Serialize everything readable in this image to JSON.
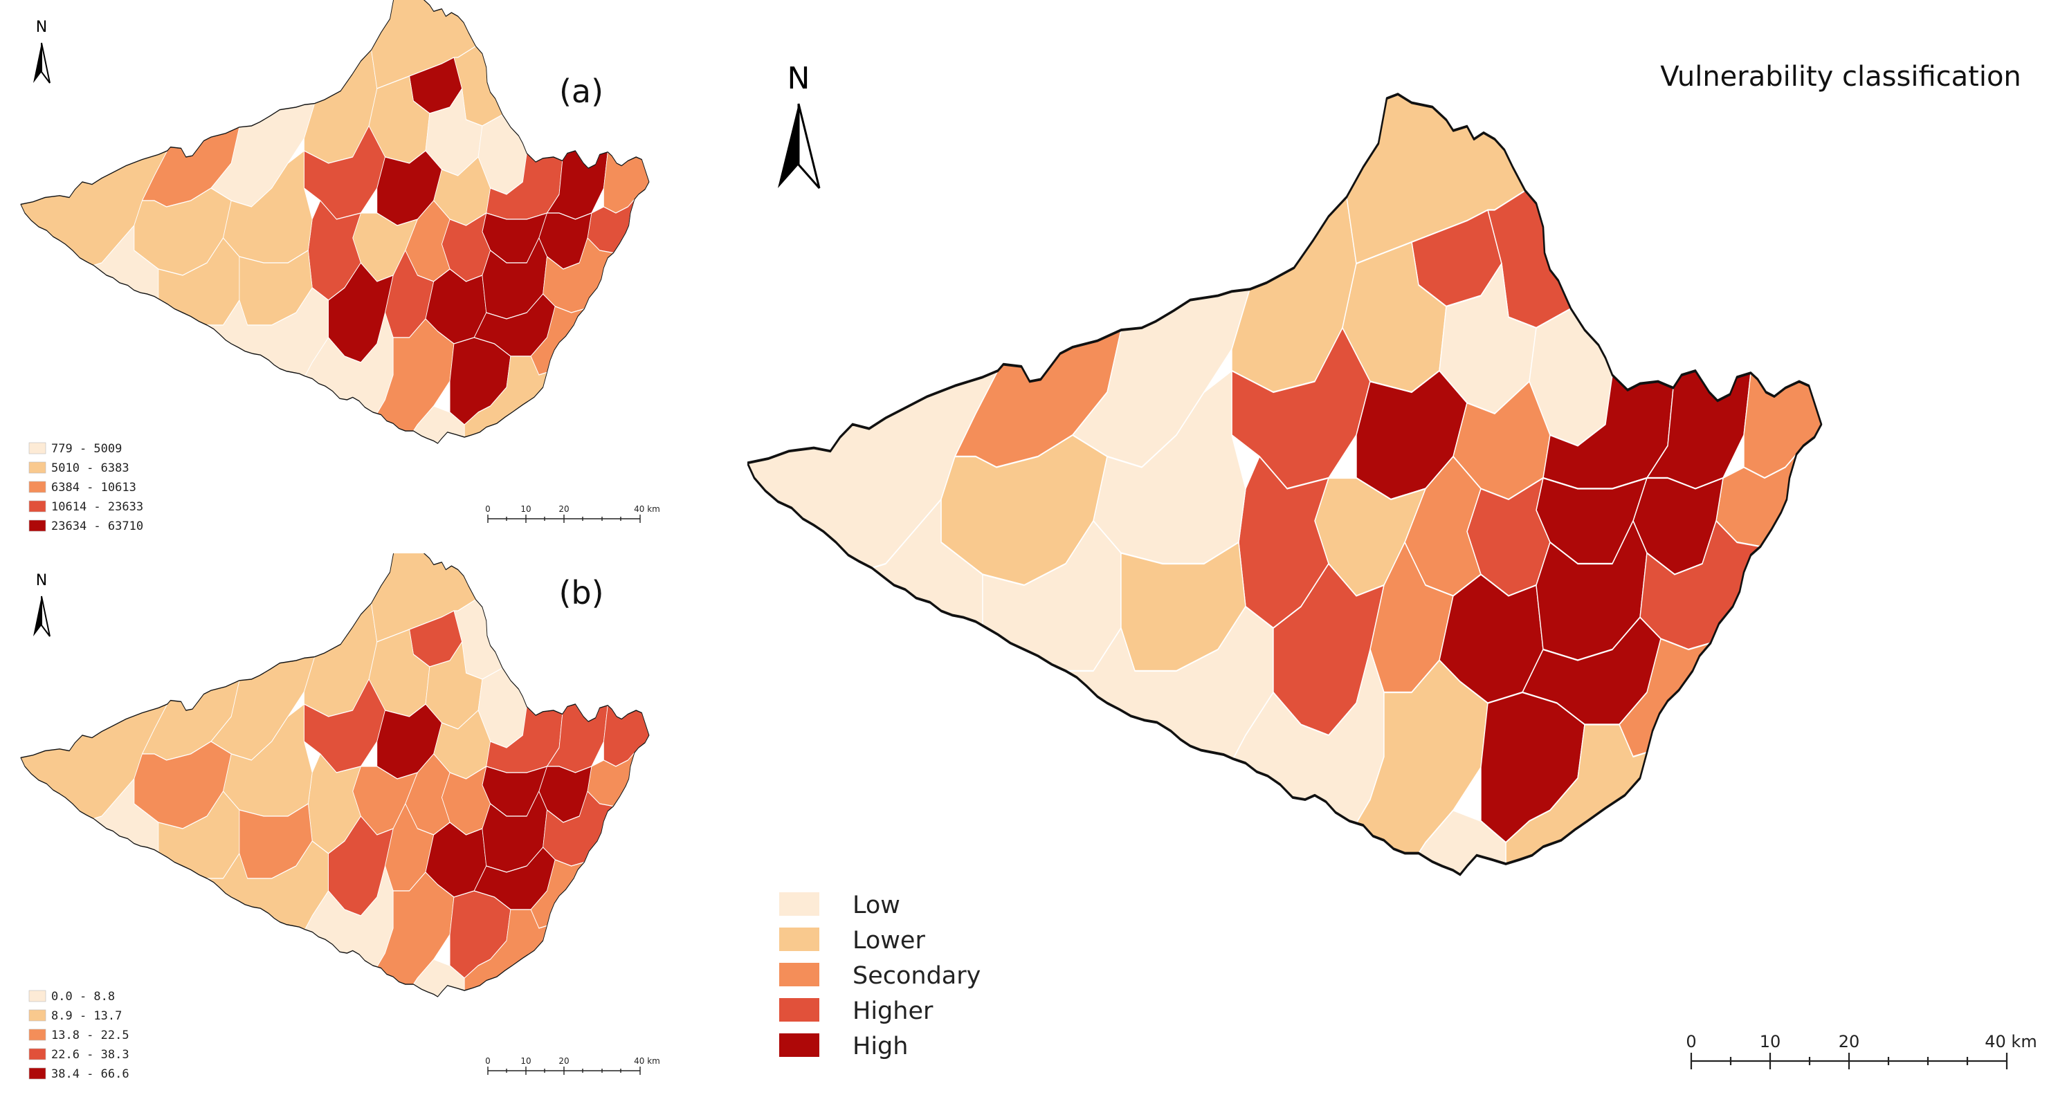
{
  "colors": {
    "c1": "#FDEBD6",
    "c2": "#F9C98E",
    "c3": "#F48E59",
    "c4": "#E1513A",
    "c5": "#AE0808"
  },
  "panel_a": {
    "label": "(a)",
    "north": "N",
    "legend": [
      "779 - 5009",
      "5010 - 6383",
      "6384 - 10613",
      "10614 - 23633",
      "23634 - 63710"
    ],
    "scale": {
      "ticks": [
        "0",
        "10",
        "20",
        "40 km"
      ]
    }
  },
  "panel_b": {
    "label": "(b)",
    "north": "N",
    "legend": [
      "0.0 - 8.8",
      "8.9 - 13.7",
      "13.8 - 22.5",
      "22.6 - 38.3",
      "38.4 - 66.6"
    ],
    "scale": {
      "ticks": [
        "0",
        "10",
        "20",
        "40 km"
      ]
    }
  },
  "panel_main": {
    "title": "Vulnerability classification",
    "north": "N",
    "legend": [
      "Low",
      "Lower",
      "Secondary",
      "Higher",
      "High"
    ],
    "scale": {
      "ticks": [
        "0",
        "10",
        "20",
        "40 km"
      ]
    }
  }
}
